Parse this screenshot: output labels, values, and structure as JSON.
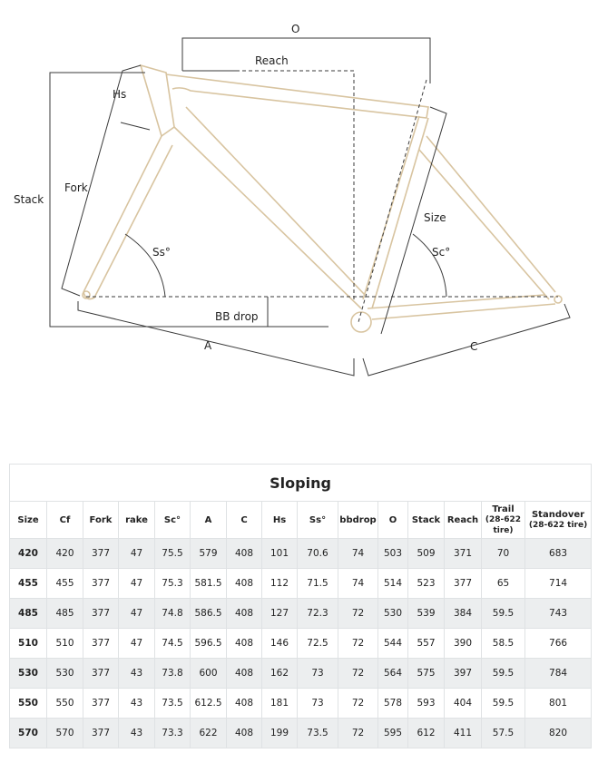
{
  "diagram": {
    "labels": {
      "O": "O",
      "reach": "Reach",
      "hs": "Hs",
      "stack": "Stack",
      "fork": "Fork",
      "ss": "Ss°",
      "bbdrop": "BB drop",
      "a": "A",
      "size": "Size",
      "sc": "Sc°",
      "c": "C"
    },
    "colors": {
      "frame": "#d8c4a0",
      "dimension": "#3a3a3a"
    }
  },
  "table": {
    "title": "Sloping",
    "headers": [
      "Size",
      "Cf",
      "Fork",
      "rake",
      "Sc°",
      "A",
      "C",
      "Hs",
      "Ss°",
      "bbdrop",
      "O",
      "Stack",
      "Reach",
      "Trail",
      "Standover"
    ],
    "header_notes": {
      "13": "(28-622 tire)",
      "14": "(28-622 tire)"
    },
    "rows": [
      [
        "420",
        "420",
        "377",
        "47",
        "75.5",
        "579",
        "408",
        "101",
        "70.6",
        "74",
        "503",
        "509",
        "371",
        "70",
        "683"
      ],
      [
        "455",
        "455",
        "377",
        "47",
        "75.3",
        "581.5",
        "408",
        "112",
        "71.5",
        "74",
        "514",
        "523",
        "377",
        "65",
        "714"
      ],
      [
        "485",
        "485",
        "377",
        "47",
        "74.8",
        "586.5",
        "408",
        "127",
        "72.3",
        "72",
        "530",
        "539",
        "384",
        "59.5",
        "743"
      ],
      [
        "510",
        "510",
        "377",
        "47",
        "74.5",
        "596.5",
        "408",
        "146",
        "72.5",
        "72",
        "544",
        "557",
        "390",
        "58.5",
        "766"
      ],
      [
        "530",
        "530",
        "377",
        "43",
        "73.8",
        "600",
        "408",
        "162",
        "73",
        "72",
        "564",
        "575",
        "397",
        "59.5",
        "784"
      ],
      [
        "550",
        "550",
        "377",
        "43",
        "73.5",
        "612.5",
        "408",
        "181",
        "73",
        "72",
        "578",
        "593",
        "404",
        "59.5",
        "801"
      ],
      [
        "570",
        "570",
        "377",
        "43",
        "73.3",
        "622",
        "408",
        "199",
        "73.5",
        "72",
        "595",
        "612",
        "411",
        "57.5",
        "820"
      ]
    ]
  }
}
